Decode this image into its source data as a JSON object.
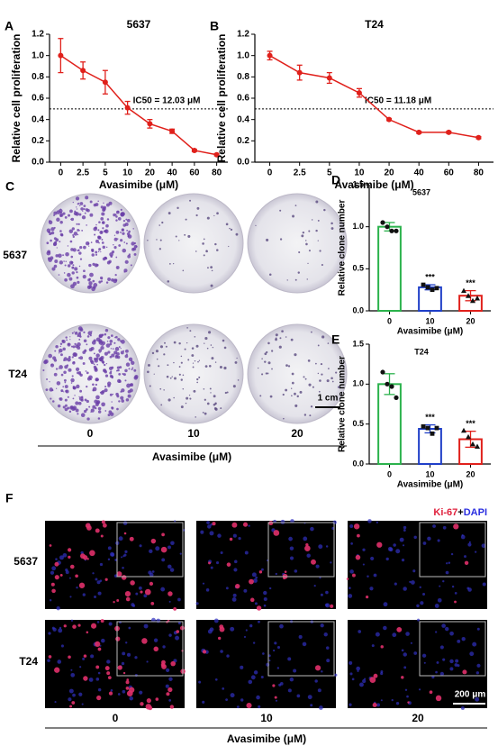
{
  "chart_data": [
    {
      "type": "line",
      "label": "A",
      "title": "5637",
      "x_label": "Avasimibe (μM)",
      "y_label": "Relative cell proliferation",
      "categories": [
        "0",
        "2.5",
        "5",
        "10",
        "20",
        "40",
        "60",
        "80"
      ],
      "values": [
        1.0,
        0.86,
        0.75,
        0.51,
        0.36,
        0.29,
        0.11,
        0.07
      ],
      "errors": [
        0.16,
        0.08,
        0.11,
        0.06,
        0.04,
        0.02,
        0.01,
        0.01
      ],
      "color": "#e0201b",
      "ylim": [
        0,
        1.2
      ],
      "yticks": [
        {
          "value": 0,
          "label": "0.0"
        },
        0.2,
        0.4,
        0.6,
        0.8,
        {
          "value": 1,
          "label": "1.0"
        },
        1.2
      ],
      "reference_line": 0.5,
      "annotation": "IC50 = 12.03 μM"
    },
    {
      "type": "line",
      "label": "B",
      "title": "T24",
      "x_label": "Avasimibe (μM)",
      "y_label": "Relative cell proliferation",
      "categories": [
        "0",
        "2.5",
        "5",
        "10",
        "20",
        "40",
        "60",
        "80"
      ],
      "values": [
        1.0,
        0.84,
        0.79,
        0.65,
        0.4,
        0.28,
        0.28,
        0.23
      ],
      "errors": [
        0.04,
        0.07,
        0.05,
        0.04,
        0.01,
        0.01,
        0.01,
        0.01
      ],
      "color": "#e0201b",
      "ylim": [
        0,
        1.2
      ],
      "yticks": [
        {
          "value": 0,
          "label": "0.0"
        },
        0.2,
        0.4,
        0.6,
        0.8,
        {
          "value": 1,
          "label": "1.0"
        },
        1.2
      ],
      "reference_line": 0.5,
      "annotation": "IC50 = 11.18 μM"
    },
    {
      "type": "bar",
      "label": "D",
      "title": "5637",
      "x_label": "Avasimibe (μM)",
      "y_label": "Relative clone number",
      "categories": [
        "0",
        "10",
        "20"
      ],
      "values": [
        1.0,
        0.28,
        0.18
      ],
      "errors": [
        0.05,
        0.03,
        0.06
      ],
      "colors": [
        "#2bb24c",
        "#1f3fc8",
        "#e0201b"
      ],
      "points": [
        [
          1.05,
          1.0,
          0.95,
          0.95
        ],
        [
          0.31,
          0.28,
          0.25,
          0.27
        ],
        [
          0.24,
          0.18,
          0.12,
          0.15
        ]
      ],
      "significance": [
        null,
        "***",
        "***"
      ],
      "ylim": [
        0,
        1.5
      ],
      "yticks": [
        {
          "value": 0,
          "label": "0.0"
        },
        0.5,
        {
          "value": 1,
          "label": "1.0"
        },
        1.5
      ]
    },
    {
      "type": "bar",
      "label": "E",
      "title": "T24",
      "x_label": "Avasimibe (μM)",
      "y_label": "Relative clone number",
      "categories": [
        "0",
        "10",
        "20"
      ],
      "values": [
        1.0,
        0.44,
        0.31
      ],
      "errors": [
        0.13,
        0.05,
        0.1
      ],
      "colors": [
        "#2bb24c",
        "#1f3fc8",
        "#e0201b"
      ],
      "points": [
        [
          1.15,
          1.0,
          0.97,
          0.83
        ],
        [
          0.47,
          0.45,
          0.38,
          0.45
        ],
        [
          0.42,
          0.34,
          0.25,
          0.22
        ]
      ],
      "significance": [
        null,
        "***",
        "***"
      ],
      "ylim": [
        0,
        1.5
      ],
      "yticks": [
        {
          "value": 0,
          "label": "0.0"
        },
        0.5,
        {
          "value": 1,
          "label": "1.0"
        },
        1.5
      ]
    }
  ],
  "figure": {
    "panel_c": "C",
    "panel_f": "F",
    "rows": [
      "5637",
      "T24"
    ],
    "doses": [
      "0",
      "10",
      "20"
    ],
    "x_label": "Avasimibe (μM)",
    "scale_c": "1 cm",
    "scale_f": "200 μm",
    "stain": [
      "Ki-67",
      "+",
      "DAPI"
    ]
  }
}
